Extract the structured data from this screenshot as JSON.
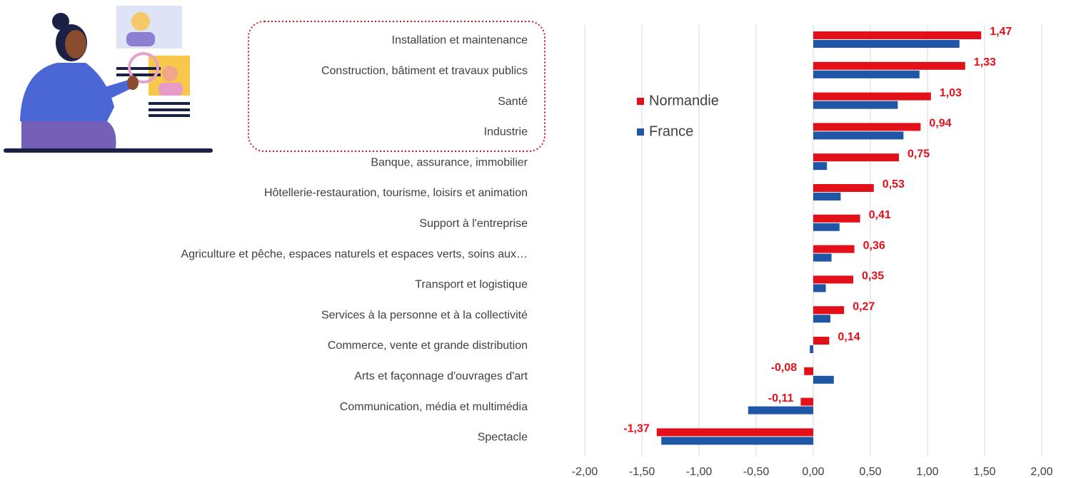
{
  "chart_data": {
    "type": "hbar",
    "categories": [
      "Installation et maintenance",
      "Construction, bâtiment et travaux publics",
      "Santé",
      "Industrie",
      "Banque, assurance, immobilier",
      "Hôtellerie-restauration, tourisme, loisirs et animation",
      "Support à l'entreprise",
      "Agriculture et pêche, espaces naturels et espaces verts, soins aux…",
      "Transport et logistique",
      "Services à la personne et à la collectivité",
      "Commerce, vente et grande distribution",
      "Arts et façonnage d'ouvrages d'art",
      "Communication, média et multimédia",
      "Spectacle"
    ],
    "series": [
      {
        "name": "Normandie",
        "color": "#e3101a",
        "values": [
          1.47,
          1.33,
          1.03,
          0.94,
          0.75,
          0.53,
          0.41,
          0.36,
          0.35,
          0.27,
          0.14,
          -0.08,
          -0.11,
          -1.37
        ],
        "value_labels": [
          "1,47",
          "1,33",
          "1,03",
          "0,94",
          "0,75",
          "0,53",
          "0,41",
          "0,36",
          "0,35",
          "0,27",
          "0,14",
          "-0,08",
          "-0,11",
          "-1,37"
        ]
      },
      {
        "name": "France",
        "color": "#1f57a6",
        "values": [
          1.28,
          0.93,
          0.74,
          0.79,
          0.12,
          0.24,
          0.23,
          0.16,
          0.11,
          0.15,
          -0.03,
          0.18,
          -0.57,
          -1.33
        ]
      }
    ],
    "xlim": [
      -2,
      2
    ],
    "xticks": [
      {
        "value": -2,
        "label": "-2,00"
      },
      {
        "value": -1.5,
        "label": "-1,50"
      },
      {
        "value": -1,
        "label": "-1,00"
      },
      {
        "value": -0.5,
        "label": "-0,50"
      },
      {
        "value": 0,
        "label": "0,00"
      },
      {
        "value": 0.5,
        "label": "0,50"
      },
      {
        "value": 1,
        "label": "1,00"
      },
      {
        "value": 1.5,
        "label": "1,50"
      },
      {
        "value": 2,
        "label": "2,00"
      }
    ],
    "grid": true,
    "legend": "center-left"
  }
}
